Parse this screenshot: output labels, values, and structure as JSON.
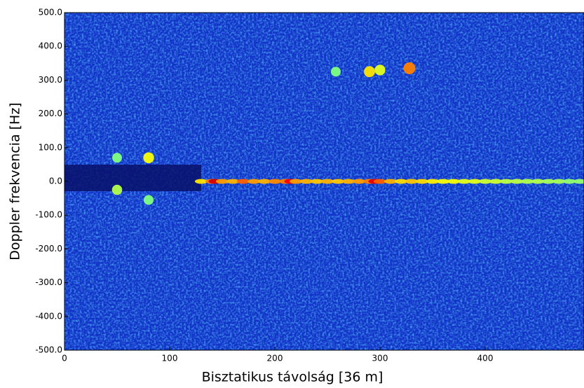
{
  "chart_data": {
    "type": "heatmap",
    "xlabel": "Bisztatikus távolság [36 m]",
    "ylabel": "Doppler frekvencia [Hz]",
    "colormap": "jet",
    "xlim": [
      0,
      494
    ],
    "ylim": [
      -500,
      500
    ],
    "xticks": [
      0,
      100,
      200,
      300,
      400
    ],
    "yticks": [
      {
        "value": -500,
        "label": "-500.0"
      },
      {
        "value": -400,
        "label": "-400.0"
      },
      {
        "value": -300,
        "label": "-300.0"
      },
      {
        "value": -200,
        "label": "-200.0"
      },
      {
        "value": -100,
        "label": "-100.0"
      },
      {
        "value": 0,
        "label": "0.0"
      },
      {
        "value": 100,
        "label": "100.0"
      },
      {
        "value": 200,
        "label": "200.0"
      },
      {
        "value": 300,
        "label": "300.0"
      },
      {
        "value": 400,
        "label": "400.0"
      },
      {
        "value": 500,
        "label": "500.0"
      }
    ],
    "x": [
      130,
      140,
      143,
      150,
      160,
      170,
      180,
      190,
      200,
      210,
      215,
      220,
      230,
      240,
      250,
      260,
      270,
      280,
      290,
      295,
      300,
      310,
      320,
      330,
      340,
      350,
      360,
      370,
      380,
      390,
      400,
      410,
      420,
      430,
      440,
      450,
      460,
      470,
      480,
      490,
      328,
      290,
      300,
      258,
      80,
      50,
      50,
      80
    ],
    "y": [
      0,
      0,
      0,
      0,
      0,
      0,
      0,
      0,
      0,
      0,
      0,
      0,
      0,
      0,
      0,
      0,
      0,
      0,
      0,
      0,
      0,
      0,
      0,
      0,
      0,
      0,
      0,
      0,
      0,
      0,
      0,
      0,
      0,
      0,
      0,
      0,
      0,
      0,
      0,
      0,
      335,
      325,
      330,
      325,
      70,
      -25,
      70,
      -55
    ],
    "values": [
      0.65,
      0.75,
      0.92,
      0.72,
      0.7,
      0.78,
      0.72,
      0.7,
      0.74,
      0.75,
      0.88,
      0.72,
      0.7,
      0.68,
      0.7,
      0.68,
      0.7,
      0.72,
      0.75,
      0.9,
      0.78,
      0.7,
      0.66,
      0.68,
      0.66,
      0.64,
      0.62,
      0.62,
      0.6,
      0.6,
      0.58,
      0.58,
      0.56,
      0.56,
      0.55,
      0.55,
      0.54,
      0.54,
      0.52,
      0.52,
      0.75,
      0.65,
      0.6,
      0.5,
      0.62,
      0.55,
      0.5,
      0.5
    ]
  }
}
